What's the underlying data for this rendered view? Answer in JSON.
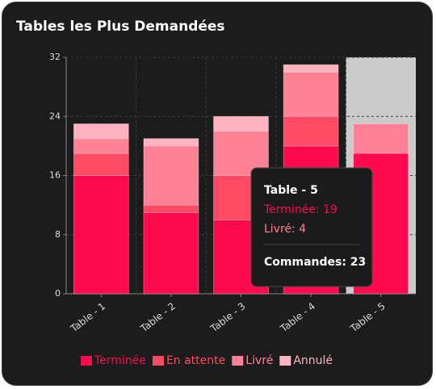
{
  "chart_data": {
    "type": "stacked_bar",
    "title": "Tables les Plus Demandées",
    "categories": [
      "Table - 1",
      "Table - 2",
      "Table - 3",
      "Table - 4",
      "Table - 5"
    ],
    "series": [
      {
        "name": "Terminée",
        "color": "#ff0a4e",
        "values": [
          16,
          11,
          10,
          20,
          19
        ]
      },
      {
        "name": "En attente",
        "color": "#ff4a66",
        "values": [
          3,
          1,
          6,
          4,
          0
        ]
      },
      {
        "name": "Livré",
        "color": "#ff8196",
        "values": [
          2,
          8,
          6,
          6,
          4
        ]
      },
      {
        "name": "Annulé",
        "color": "#ffb2bf",
        "values": [
          2,
          1,
          2,
          1,
          0
        ]
      }
    ],
    "ylim": [
      0,
      32
    ],
    "yticks": [
      0,
      8,
      16,
      24,
      32
    ],
    "grid": true,
    "legend": "bottom",
    "tooltip": {
      "title": "Table - 5",
      "items": [
        "Terminée: 19",
        "Livré: 4"
      ],
      "footer": "Commandes: 23"
    }
  }
}
